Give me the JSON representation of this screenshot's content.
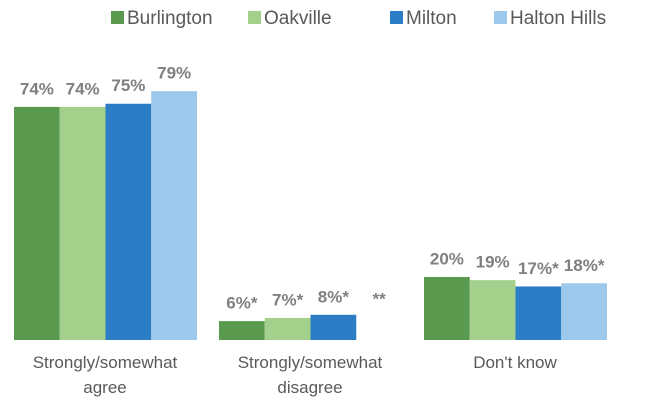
{
  "chart_data": {
    "type": "bar",
    "categories": [
      "Strongly/somewhat agree",
      "Strongly/somewhat disagree",
      "Don't know"
    ],
    "series": [
      {
        "name": "Burlington",
        "color": "#5a9a4e",
        "values": [
          74,
          6,
          20
        ],
        "value_labels": [
          "74%",
          "6%*",
          "20%"
        ]
      },
      {
        "name": "Oakville",
        "color": "#a3d08b",
        "values": [
          74,
          7,
          19
        ],
        "value_labels": [
          "74%",
          "7%*",
          "19%"
        ]
      },
      {
        "name": "Milton",
        "color": "#2b7ec5",
        "values": [
          75,
          8,
          17
        ],
        "value_labels": [
          "75%",
          "8%*",
          "17%*"
        ]
      },
      {
        "name": "Halton Hills",
        "color": "#9cc8eb",
        "values": [
          79,
          null,
          18
        ],
        "value_labels": [
          "79%",
          "**",
          "18%*"
        ]
      }
    ],
    "ylim": [
      0,
      80
    ],
    "legend": "top"
  }
}
